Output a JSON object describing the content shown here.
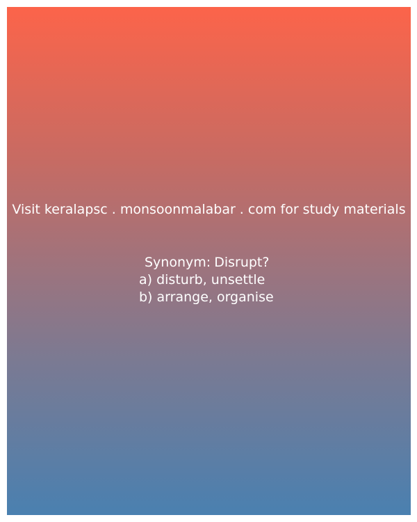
{
  "card": {
    "gradient_top": "#fc644a",
    "gradient_bottom": "#4a80b0",
    "text_color": "#ffffff"
  },
  "watermark": {
    "text": "Visit keralapsc . monsoonmalabar . com for study materials"
  },
  "quiz": {
    "question": "Synonym: Disrupt?",
    "options": [
      "a) disturb, unsettle",
      "b) arrange, organise"
    ]
  }
}
